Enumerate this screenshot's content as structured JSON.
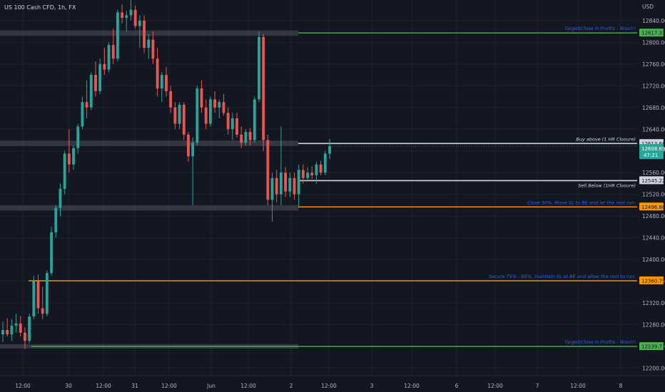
{
  "header": {
    "symbol": "US 100 Cash CFD, 1h, FX",
    "currency": "USD"
  },
  "colors": {
    "background": "#131722",
    "up": "#26a69a",
    "down": "#ef5350",
    "text": "#b2b5be",
    "note": "#2962ff",
    "green_level": "#4caf50",
    "orange_level": "#ff9800",
    "white_level": "#d1d4dc"
  },
  "chart_data": {
    "type": "candlestick",
    "x_ticks": [
      "12:00",
      "30",
      "12:00",
      "31",
      "12:00",
      "Jun",
      "12:00",
      "2",
      "12:00",
      "3",
      "12:00",
      "6",
      "12:00",
      "7",
      "12:00",
      "8"
    ],
    "y_ticks": [
      12840,
      12800,
      12760,
      12720,
      12680,
      12640,
      12600,
      12560,
      12520,
      12480,
      12440,
      12400,
      12360,
      12320,
      12280,
      12240,
      12200
    ],
    "y_tick_labels": [
      "12840.00",
      "12800.00",
      "12760.00",
      "12720.00",
      "12680.00",
      "12640.00",
      "12600.00",
      "12560.00",
      "12520.00",
      "12480.00",
      "12440.00",
      "12400.00",
      "12360.00",
      "12320.00",
      "12280.00",
      "12240.00",
      "12200.00"
    ],
    "ylim": [
      12186,
      12878
    ],
    "current_price": {
      "value": 12608.69,
      "label": "12608.69",
      "countdown": "47:21"
    },
    "levels": [
      {
        "value": 12817.33,
        "label": "12817.33",
        "note": "Target|Close in Profits - Woo!!!",
        "kind": "green"
      },
      {
        "value": 12613.66,
        "label": "12613.66",
        "note": "Buy above (1 HR Closure)",
        "kind": "white"
      },
      {
        "value": 12545.22,
        "label": "12545.22",
        "note": "Sell Below (1HR Closure)",
        "kind": "white"
      },
      {
        "value": 12496.8,
        "label": "12496.80",
        "note": "Close 50%, Move SL to BE and let the rest run.",
        "kind": "orange"
      },
      {
        "value": 12360.75,
        "label": "12360.75",
        "note": "Secure 75% - 85%, maintain SL at BE and allow the rest to run.",
        "kind": "orange"
      },
      {
        "value": 12239.71,
        "label": "12239.71",
        "note": "Target|Close in Profits - Woo!!!",
        "kind": "green"
      }
    ],
    "zones": [
      {
        "low": 12812,
        "high": 12822
      },
      {
        "low": 12609,
        "high": 12619
      },
      {
        "low": 12490,
        "high": 12500
      },
      {
        "low": 12236,
        "high": 12244
      }
    ],
    "candles": [
      [
        12262,
        12285,
        12248,
        12270
      ],
      [
        12270,
        12292,
        12258,
        12262
      ],
      [
        12262,
        12290,
        12250,
        12278
      ],
      [
        12278,
        12300,
        12265,
        12282
      ],
      [
        12282,
        12296,
        12258,
        12265
      ],
      [
        12265,
        12275,
        12235,
        12250
      ],
      [
        12250,
        12300,
        12245,
        12295
      ],
      [
        12295,
        12370,
        12290,
        12360
      ],
      [
        12360,
        12372,
        12300,
        12310
      ],
      [
        12310,
        12350,
        12290,
        12300
      ],
      [
        12300,
        12380,
        12295,
        12375
      ],
      [
        12375,
        12460,
        12370,
        12450
      ],
      [
        12450,
        12500,
        12440,
        12495
      ],
      [
        12495,
        12540,
        12480,
        12530
      ],
      [
        12530,
        12600,
        12520,
        12595
      ],
      [
        12595,
        12640,
        12560,
        12575
      ],
      [
        12575,
        12610,
        12565,
        12605
      ],
      [
        12605,
        12650,
        12595,
        12645
      ],
      [
        12645,
        12700,
        12640,
        12690
      ],
      [
        12690,
        12730,
        12660,
        12680
      ],
      [
        12680,
        12745,
        12675,
        12740
      ],
      [
        12740,
        12765,
        12700,
        12710
      ],
      [
        12710,
        12770,
        12705,
        12760
      ],
      [
        12760,
        12790,
        12740,
        12750
      ],
      [
        12750,
        12800,
        12745,
        12795
      ],
      [
        12795,
        12825,
        12760,
        12770
      ],
      [
        12770,
        12860,
        12765,
        12855
      ],
      [
        12855,
        12870,
        12835,
        12845
      ],
      [
        12845,
        12858,
        12820,
        12850
      ],
      [
        12850,
        12880,
        12840,
        12860
      ],
      [
        12860,
        12868,
        12825,
        12830
      ],
      [
        12830,
        12850,
        12790,
        12840
      ],
      [
        12840,
        12850,
        12780,
        12790
      ],
      [
        12790,
        12815,
        12770,
        12805
      ],
      [
        12805,
        12820,
        12760,
        12770
      ],
      [
        12770,
        12790,
        12700,
        12715
      ],
      [
        12715,
        12745,
        12690,
        12740
      ],
      [
        12740,
        12755,
        12700,
        12710
      ],
      [
        12710,
        12720,
        12670,
        12680
      ],
      [
        12680,
        12690,
        12640,
        12650
      ],
      [
        12650,
        12690,
        12640,
        12685
      ],
      [
        12685,
        12690,
        12620,
        12630
      ],
      [
        12630,
        12635,
        12580,
        12590
      ],
      [
        12590,
        12625,
        12500,
        12615
      ],
      [
        12615,
        12720,
        12610,
        12715
      ],
      [
        12715,
        12730,
        12670,
        12680
      ],
      [
        12680,
        12695,
        12640,
        12650
      ],
      [
        12650,
        12700,
        12645,
        12695
      ],
      [
        12695,
        12710,
        12670,
        12680
      ],
      [
        12680,
        12695,
        12660,
        12690
      ],
      [
        12690,
        12705,
        12665,
        12670
      ],
      [
        12670,
        12680,
        12630,
        12640
      ],
      [
        12640,
        12670,
        12620,
        12660
      ],
      [
        12660,
        12670,
        12625,
        12630
      ],
      [
        12630,
        12645,
        12605,
        12615
      ],
      [
        12615,
        12640,
        12610,
        12635
      ],
      [
        12635,
        12642,
        12610,
        12620
      ],
      [
        12620,
        12700,
        12615,
        12695
      ],
      [
        12695,
        12820,
        12690,
        12810
      ],
      [
        12810,
        12815,
        12600,
        12620
      ],
      [
        12620,
        12630,
        12500,
        12510
      ],
      [
        12510,
        12560,
        12470,
        12550
      ],
      [
        12550,
        12565,
        12505,
        12520
      ],
      [
        12520,
        12645,
        12500,
        12560
      ],
      [
        12560,
        12570,
        12515,
        12525
      ],
      [
        12525,
        12560,
        12515,
        12550
      ],
      [
        12550,
        12560,
        12510,
        12520
      ],
      [
        12520,
        12575,
        12495,
        12565
      ],
      [
        12565,
        12575,
        12540,
        12550
      ],
      [
        12550,
        12570,
        12545,
        12560
      ],
      [
        12560,
        12572,
        12548,
        12555
      ],
      [
        12555,
        12580,
        12540,
        12575
      ],
      [
        12575,
        12582,
        12555,
        12560
      ],
      [
        12560,
        12600,
        12555,
        12595
      ],
      [
        12595,
        12622,
        12585,
        12609
      ]
    ]
  }
}
